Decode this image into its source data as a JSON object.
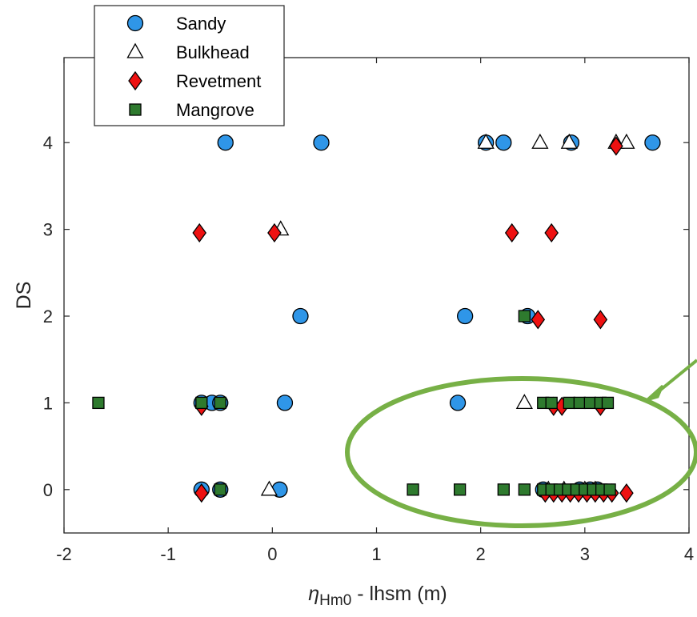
{
  "chart_data": {
    "type": "scatter",
    "title": "",
    "xlabel": {
      "symbol": "η",
      "subscript": "Hm0",
      "rest": " - lhsm (m)"
    },
    "ylabel": "DS",
    "xlim": [
      -2,
      4
    ],
    "ylim": [
      -0.5,
      4.98
    ],
    "x_ticks": [
      "-2",
      "-1",
      "0",
      "1",
      "2",
      "3",
      "4"
    ],
    "y_ticks": [
      "0",
      "1",
      "2",
      "3",
      "4"
    ],
    "grid": false,
    "legend_position": "top-left",
    "series": [
      {
        "name": "Sandy",
        "marker": "circle",
        "color": "#2f96e8",
        "points": [
          [
            -0.45,
            4
          ],
          [
            0.47,
            4
          ],
          [
            2.05,
            4
          ],
          [
            2.22,
            4
          ],
          [
            2.87,
            4
          ],
          [
            3.65,
            4
          ],
          [
            0.27,
            2
          ],
          [
            1.85,
            2
          ],
          [
            2.45,
            2
          ],
          [
            -0.68,
            1
          ],
          [
            -0.58,
            1
          ],
          [
            -0.5,
            1
          ],
          [
            0.12,
            1
          ],
          [
            1.78,
            1
          ],
          [
            -0.68,
            0
          ],
          [
            -0.5,
            0
          ],
          [
            0.07,
            0
          ],
          [
            2.6,
            0
          ],
          [
            2.95,
            0
          ],
          [
            3.05,
            0
          ],
          [
            3.12,
            0
          ]
        ]
      },
      {
        "name": "Bulkhead",
        "marker": "triangle",
        "color": "#ffffff",
        "points": [
          [
            2.05,
            4
          ],
          [
            2.57,
            4
          ],
          [
            2.85,
            4
          ],
          [
            3.3,
            4
          ],
          [
            3.4,
            4
          ],
          [
            0.08,
            3
          ],
          [
            2.42,
            1
          ],
          [
            -0.03,
            0
          ],
          [
            2.65,
            0
          ],
          [
            2.8,
            0
          ],
          [
            3.0,
            0
          ],
          [
            3.1,
            0
          ]
        ]
      },
      {
        "name": "Revetment",
        "marker": "diamond",
        "color": "#ee1111",
        "points": [
          [
            3.3,
            3.96
          ],
          [
            -0.7,
            2.96
          ],
          [
            0.02,
            2.96
          ],
          [
            2.3,
            2.96
          ],
          [
            2.68,
            2.96
          ],
          [
            2.55,
            1.96
          ],
          [
            3.15,
            1.96
          ],
          [
            -0.68,
            0.96
          ],
          [
            2.7,
            0.96
          ],
          [
            2.78,
            0.96
          ],
          [
            3.15,
            0.96
          ],
          [
            -0.68,
            -0.04
          ],
          [
            2.62,
            -0.04
          ],
          [
            2.7,
            -0.04
          ],
          [
            2.78,
            -0.04
          ],
          [
            2.86,
            -0.04
          ],
          [
            2.94,
            -0.04
          ],
          [
            3.02,
            -0.04
          ],
          [
            3.1,
            -0.04
          ],
          [
            3.18,
            -0.04
          ],
          [
            3.26,
            -0.04
          ],
          [
            3.4,
            -0.04
          ]
        ]
      },
      {
        "name": "Mangrove",
        "marker": "square",
        "color": "#2e7a2e",
        "points": [
          [
            2.42,
            2
          ],
          [
            -1.67,
            1
          ],
          [
            -0.68,
            1
          ],
          [
            -0.5,
            1
          ],
          [
            2.6,
            1
          ],
          [
            2.68,
            1
          ],
          [
            2.85,
            1
          ],
          [
            2.95,
            1
          ],
          [
            3.05,
            1
          ],
          [
            3.15,
            1
          ],
          [
            3.22,
            1
          ],
          [
            -0.5,
            0
          ],
          [
            1.35,
            0
          ],
          [
            1.8,
            0
          ],
          [
            2.22,
            0
          ],
          [
            2.42,
            0
          ],
          [
            2.6,
            0
          ],
          [
            2.68,
            0
          ],
          [
            2.76,
            0
          ],
          [
            2.84,
            0
          ],
          [
            2.92,
            0
          ],
          [
            3.0,
            0
          ],
          [
            3.08,
            0
          ],
          [
            3.16,
            0
          ],
          [
            3.24,
            0
          ]
        ]
      }
    ]
  },
  "annotation": {
    "ellipse_color": "#77b046",
    "arrow_color": "#77b046"
  }
}
